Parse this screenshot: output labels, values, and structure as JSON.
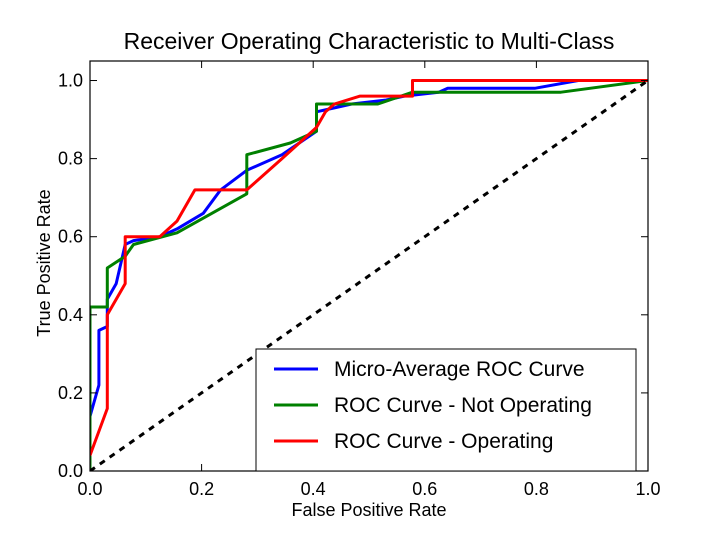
{
  "chart_data": {
    "type": "line",
    "title": "Receiver Operating Characteristic to Multi-Class",
    "xlabel": "False Positive Rate",
    "ylabel": "True Positive Rate",
    "xlim": [
      0.0,
      1.0
    ],
    "ylim": [
      0.0,
      1.05
    ],
    "x_ticks": [
      "0.0",
      "0.2",
      "0.4",
      "0.6",
      "0.8",
      "1.0"
    ],
    "y_ticks": [
      "0.0",
      "0.2",
      "0.4",
      "0.6",
      "0.8",
      "1.0"
    ],
    "grid": false,
    "legend_position": "lower-right",
    "series": [
      {
        "name": "Micro-Average ROC Curve",
        "color": "#0000ff",
        "style": "solid",
        "points": [
          [
            0.0,
            0.13
          ],
          [
            0.0,
            0.14
          ],
          [
            0.016,
            0.22
          ],
          [
            0.016,
            0.36
          ],
          [
            0.031,
            0.37
          ],
          [
            0.031,
            0.44
          ],
          [
            0.047,
            0.48
          ],
          [
            0.063,
            0.58
          ],
          [
            0.078,
            0.59
          ],
          [
            0.125,
            0.6
          ],
          [
            0.156,
            0.62
          ],
          [
            0.203,
            0.66
          ],
          [
            0.234,
            0.72
          ],
          [
            0.281,
            0.77
          ],
          [
            0.344,
            0.81
          ],
          [
            0.406,
            0.87
          ],
          [
            0.406,
            0.92
          ],
          [
            0.438,
            0.93
          ],
          [
            0.469,
            0.94
          ],
          [
            0.531,
            0.95
          ],
          [
            0.563,
            0.96
          ],
          [
            0.625,
            0.97
          ],
          [
            0.641,
            0.98
          ],
          [
            0.797,
            0.98
          ],
          [
            0.875,
            1.0
          ],
          [
            1.0,
            1.0
          ]
        ]
      },
      {
        "name": "ROC Curve - Not Operating",
        "color": "#008000",
        "style": "solid",
        "points": [
          [
            0.0,
            0.0
          ],
          [
            0.0,
            0.42
          ],
          [
            0.031,
            0.42
          ],
          [
            0.031,
            0.52
          ],
          [
            0.063,
            0.55
          ],
          [
            0.078,
            0.58
          ],
          [
            0.156,
            0.61
          ],
          [
            0.281,
            0.71
          ],
          [
            0.281,
            0.81
          ],
          [
            0.359,
            0.84
          ],
          [
            0.406,
            0.87
          ],
          [
            0.406,
            0.94
          ],
          [
            0.516,
            0.94
          ],
          [
            0.578,
            0.97
          ],
          [
            0.844,
            0.97
          ],
          [
            1.0,
            1.0
          ]
        ]
      },
      {
        "name": "ROC Curve - Operating",
        "color": "#ff0000",
        "style": "solid",
        "points": [
          [
            0.0,
            0.04
          ],
          [
            0.031,
            0.16
          ],
          [
            0.031,
            0.4
          ],
          [
            0.063,
            0.48
          ],
          [
            0.063,
            0.6
          ],
          [
            0.125,
            0.6
          ],
          [
            0.156,
            0.64
          ],
          [
            0.188,
            0.72
          ],
          [
            0.281,
            0.72
          ],
          [
            0.344,
            0.8
          ],
          [
            0.375,
            0.84
          ],
          [
            0.406,
            0.88
          ],
          [
            0.422,
            0.92
          ],
          [
            0.438,
            0.94
          ],
          [
            0.484,
            0.96
          ],
          [
            0.578,
            0.96
          ],
          [
            0.578,
            1.0
          ],
          [
            1.0,
            1.0
          ]
        ]
      },
      {
        "name": "",
        "color": "#000000",
        "style": "dashed",
        "points": [
          [
            0.0,
            0.0
          ],
          [
            1.0,
            1.0
          ]
        ]
      }
    ]
  }
}
